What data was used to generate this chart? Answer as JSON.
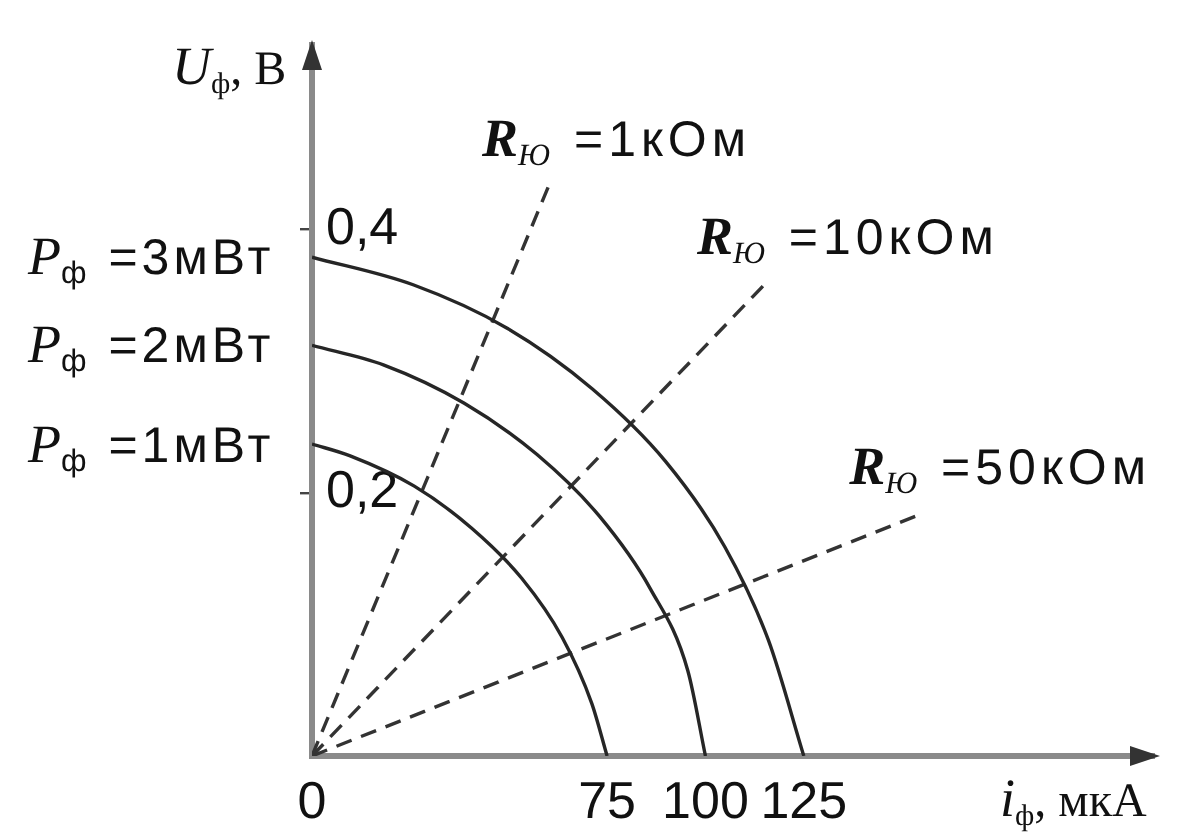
{
  "chart_data": {
    "type": "line",
    "xlabel": "i$_{ф}$, мкА",
    "ylabel": "U$_{ф}$, В",
    "xlim": [
      0,
      214
    ],
    "ylim": [
      0,
      0.54
    ],
    "xticks": [
      0,
      75,
      100,
      125
    ],
    "yticks": [
      {
        "value": 0.2,
        "label": "0,2"
      },
      {
        "value": 0.4,
        "label": "0,4"
      }
    ],
    "series": [
      {
        "name": "P$_{ф}$ =3мВт",
        "color": "#262626",
        "x": [
          0,
          25.7,
          49.6,
          71.2,
          89.8,
          104.9,
          116.0,
          125
        ],
        "values": [
          0.379,
          0.358,
          0.325,
          0.279,
          0.224,
          0.159,
          0.088,
          0
        ]
      },
      {
        "name": "P$_{ф}$ =2мВт",
        "color": "#262626",
        "x": [
          0,
          18.3,
          38.7,
          57.2,
          73.1,
          86.0,
          95.5,
          100
        ],
        "values": [
          0.312,
          0.297,
          0.268,
          0.229,
          0.182,
          0.127,
          0.065,
          0
        ]
      },
      {
        "name": "P$_{ф}$ =1мВт",
        "color": "#262626",
        "x": [
          0,
          9.7,
          26.0,
          40.6,
          53.3,
          63.6,
          71.1,
          75
        ],
        "values": [
          0.237,
          0.228,
          0.205,
          0.173,
          0.135,
          0.09,
          0.04,
          0
        ]
      },
      {
        "name": "R$_{Ю}$ =1кОм",
        "color": "#333333",
        "line_style": "dashed",
        "x": [
          0,
          60
        ],
        "values": [
          0,
          0.432
        ]
      },
      {
        "name": "R$_{Ю}$ =10кОм",
        "color": "#333333",
        "line_style": "dashed",
        "x": [
          0,
          114.6
        ],
        "values": [
          0,
          0.357
        ]
      },
      {
        "name": "R$_{Ю}$ =50кОм",
        "color": "#333333",
        "line_style": "dashed",
        "x": [
          0,
          153.3
        ],
        "values": [
          0,
          0.182
        ]
      }
    ]
  }
}
